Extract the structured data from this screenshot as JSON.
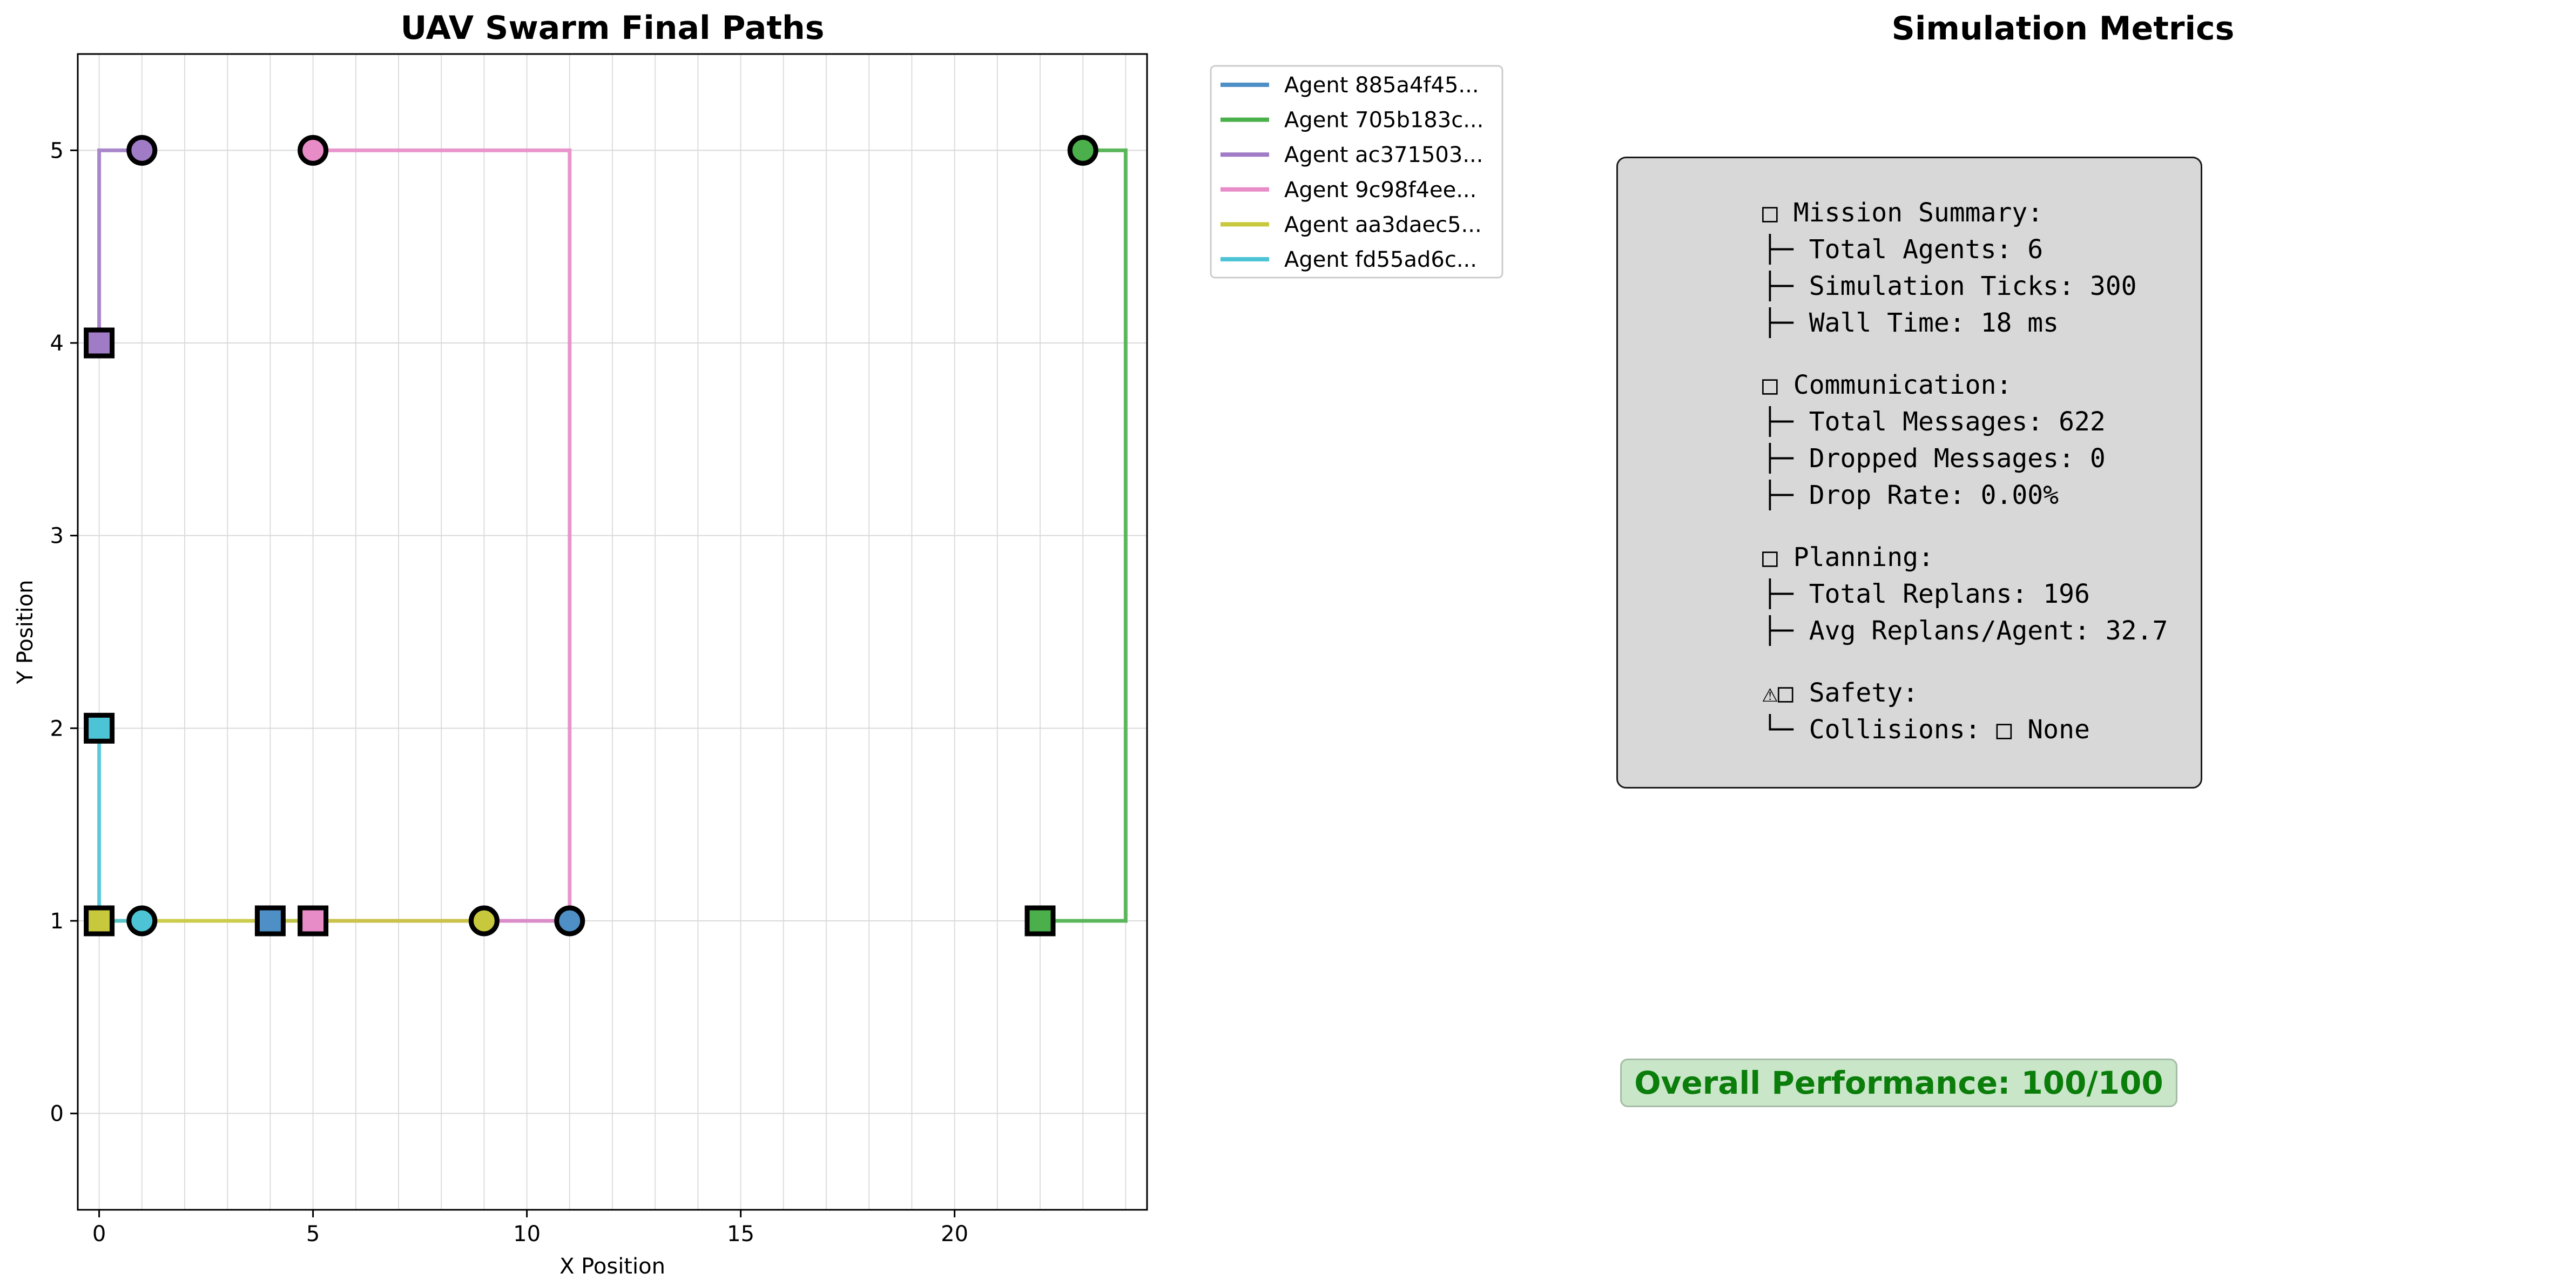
{
  "chart_data": {
    "type": "line",
    "title": "UAV Swarm Final Paths",
    "xlabel": "X Position",
    "ylabel": "Y Position",
    "xlim": [
      -0.5,
      24.5
    ],
    "ylim": [
      -0.5,
      5.5
    ],
    "x_ticks": [
      0,
      5,
      10,
      15,
      20
    ],
    "y_ticks": [
      0,
      1,
      2,
      3,
      4,
      5
    ],
    "grid": true,
    "legend_position": "outside-upper-right",
    "series": [
      {
        "name": "Agent 885a4f45...",
        "color": "#4e8fc6",
        "points": [
          [
            4,
            1
          ],
          [
            5,
            1
          ],
          [
            6,
            1
          ],
          [
            7,
            1
          ],
          [
            8,
            1
          ],
          [
            9,
            1
          ],
          [
            10,
            1
          ],
          [
            11,
            1
          ]
        ],
        "start": [
          4,
          1
        ],
        "goal": [
          11,
          1
        ]
      },
      {
        "name": "Agent 705b183c...",
        "color": "#4bb04b",
        "points": [
          [
            22,
            1
          ],
          [
            23,
            1
          ],
          [
            24,
            1
          ],
          [
            24,
            2
          ],
          [
            24,
            3
          ],
          [
            24,
            4
          ],
          [
            24,
            5
          ],
          [
            23,
            5
          ]
        ],
        "start": [
          22,
          1
        ],
        "goal": [
          23,
          5
        ]
      },
      {
        "name": "Agent ac371503...",
        "color": "#a07cc6",
        "points": [
          [
            0,
            4
          ],
          [
            0,
            5
          ],
          [
            1,
            5
          ]
        ],
        "start": [
          0,
          4
        ],
        "goal": [
          1,
          5
        ]
      },
      {
        "name": "Agent 9c98f4ee...",
        "color": "#e88cc8",
        "points": [
          [
            5,
            1
          ],
          [
            6,
            1
          ],
          [
            7,
            1
          ],
          [
            8,
            1
          ],
          [
            9,
            1
          ],
          [
            10,
            1
          ],
          [
            11,
            1
          ],
          [
            11,
            2
          ],
          [
            11,
            3
          ],
          [
            11,
            4
          ],
          [
            11,
            5
          ],
          [
            10,
            5
          ],
          [
            9,
            5
          ],
          [
            8,
            5
          ],
          [
            7,
            5
          ],
          [
            6,
            5
          ],
          [
            5,
            5
          ]
        ],
        "start": [
          5,
          1
        ],
        "goal": [
          5,
          5
        ]
      },
      {
        "name": "Agent aa3daec5...",
        "color": "#c8c83c",
        "points": [
          [
            0,
            1
          ],
          [
            1,
            1
          ],
          [
            2,
            1
          ],
          [
            3,
            1
          ],
          [
            4,
            1
          ],
          [
            5,
            1
          ],
          [
            6,
            1
          ],
          [
            7,
            1
          ],
          [
            8,
            1
          ],
          [
            9,
            1
          ]
        ],
        "start": [
          0,
          1
        ],
        "goal": [
          9,
          1
        ]
      },
      {
        "name": "Agent fd55ad6c...",
        "color": "#4cc4d6",
        "points": [
          [
            0,
            2
          ],
          [
            0,
            1
          ],
          [
            1,
            1
          ]
        ],
        "start": [
          0,
          2
        ],
        "goal": [
          1,
          1
        ]
      }
    ]
  },
  "metrics": {
    "title": "Simulation Metrics",
    "sections": [
      {
        "lines": [
          "□ Mission Summary:",
          "├─ Total Agents: 6",
          "├─ Simulation Ticks: 300",
          "├─ Wall Time: 18 ms"
        ]
      },
      {
        "lines": [
          "□ Communication:",
          "├─ Total Messages: 622",
          "├─ Dropped Messages: 0",
          "├─ Drop Rate: 0.00%"
        ]
      },
      {
        "lines": [
          "□ Planning:",
          "├─ Total Replans: 196",
          "├─ Avg Replans/Agent: 32.7"
        ]
      },
      {
        "lines": [
          "⚠□ Safety:",
          "└─ Collisions: □ None"
        ]
      }
    ],
    "performance": "Overall Performance: 100/100"
  }
}
